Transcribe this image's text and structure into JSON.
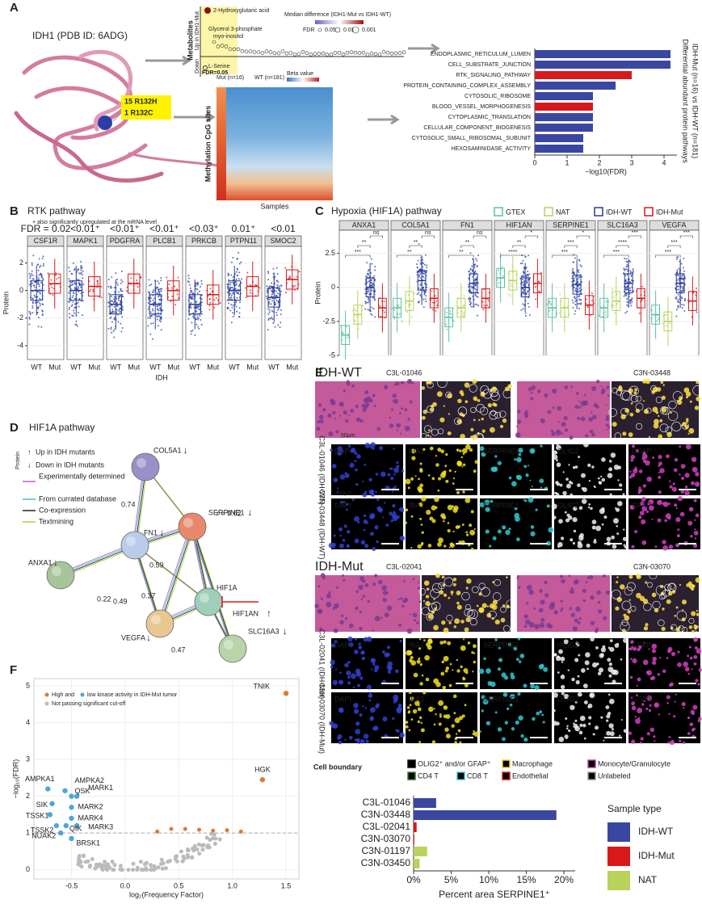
{
  "panel_a": {
    "label": "A",
    "protein_title": "IDH1 (PDB ID: 6ADG)",
    "mutations": [
      "15 R132H",
      "1 R132C"
    ],
    "metabolites": {
      "axis": "Metabolites",
      "up": "Up in IDH1-Mut",
      "down": "Down",
      "fdr": "FDR=0.05",
      "labels": [
        "2-Hydroxyglutaric acid",
        "Glycerol 3-phosphate",
        "myo-inositol",
        "L-Serine"
      ],
      "legend_title": "Median difference (IDH1-Mut vs IDH1-WT)",
      "fdr_legend": [
        "FDR",
        "0.05",
        "0.01",
        "0.001"
      ]
    },
    "methylation": {
      "axis": "Methylation CpG sites",
      "samples": "Samples",
      "mut": "Mut (n=16)",
      "wt": "WT (n=181)",
      "legend": "Beta value"
    },
    "pathways": {
      "categories": [
        "ENDOPLASMIC_RETICULUM_LUMEN",
        "CELL_SUBSTRATE_JUNCTION",
        "RTK_SIGNALING_PATHWAY",
        "PROTEIN_CONTAINING_COMPLEX_ASSEMBLY",
        "CYTOSOLIC_RIBOSOME",
        "BLOOD_VESSEL_MORPHOGENESIS",
        "CYTOPLASMIC_TRANSLATION",
        "CELLULAR_COMPONENT_BIOGENESIS",
        "CYTOSOLIC_SMALL_RIBOSOMAL_SUBUNIT",
        "HEXOSAMINIDASE_ACTIVITY"
      ],
      "values": [
        4.2,
        4.2,
        3.0,
        2.5,
        1.8,
        1.8,
        1.8,
        1.8,
        1.5,
        1.5
      ],
      "colors": [
        "#3a47a0",
        "#3a47a0",
        "#d7191c",
        "#3a47a0",
        "#3a47a0",
        "#d7191c",
        "#3a47a0",
        "#3a47a0",
        "#3a47a0",
        "#3a47a0"
      ],
      "xlim": [
        0,
        4.4
      ],
      "xticks": [
        0,
        1,
        2,
        3,
        4
      ],
      "xlabel": "−log10(FDR)",
      "side_label": [
        "Differential abundant protein pathways",
        "IDH-Mut (n=16) vs IDH-WT (n=181)"
      ]
    }
  },
  "panel_b": {
    "label": "B",
    "title": "RTK pathway",
    "subtitle": "+ also significantly upregulated at the mRNA level",
    "facets": [
      "CSF1R",
      "MAPK1",
      "PDGFRA",
      "PLCB1",
      "PRKCB",
      "PTPN11",
      "SMOC2"
    ],
    "fdr_labels": [
      "FDR = 0.02",
      "<0.01⁺",
      "<0.01⁺",
      "<0.01⁺",
      "<0.03⁺",
      "0.01⁺",
      "<0.01"
    ],
    "medians": [
      [
        0,
        0.5
      ],
      [
        0,
        0.3
      ],
      [
        -1,
        0.5
      ],
      [
        -1,
        0
      ],
      [
        -1,
        -0.3
      ],
      [
        0,
        0.3
      ],
      [
        -0.5,
        0.8
      ]
    ],
    "groups": [
      "WT",
      "Mut"
    ],
    "group_colors": [
      "#2a3d9e",
      "#d7191c"
    ],
    "ylim": [
      -5,
      3.2
    ],
    "yticks": [
      -4,
      -2,
      0,
      2
    ],
    "ylabel": "Protein",
    "xlabel": "IDH"
  },
  "panel_c": {
    "label": "C",
    "title": "Hypoxia (HIF1A) pathway",
    "groups": [
      "GTEX",
      "NAT",
      "IDH-WT",
      "IDH-Mut"
    ],
    "group_colors": [
      "#5cc2a0",
      "#b8d25a",
      "#2a3d9e",
      "#d7191c"
    ],
    "facets": [
      "ANXA1",
      "COL5A1",
      "FN1",
      "HIF1AN",
      "SERPINE1",
      "SLC16A3",
      "VEGFA"
    ],
    "significance": [
      [
        "ns",
        "**",
        "***"
      ],
      [
        "ns",
        "**",
        "**"
      ],
      [
        "ns",
        "**",
        "**"
      ],
      [
        "*",
        "**",
        "****"
      ],
      [
        "*",
        "***",
        "***"
      ],
      [
        "***",
        "****",
        "***"
      ],
      [
        "***",
        "***",
        "***"
      ]
    ],
    "medians": [
      [
        -3.5,
        -2,
        0,
        -1.5
      ],
      [
        -1.5,
        -1,
        0.5,
        -0.8
      ],
      [
        -2.2,
        -1.5,
        0.3,
        -0.8
      ],
      [
        0.7,
        0.5,
        0,
        0.3
      ],
      [
        -1.5,
        -1.5,
        0.2,
        -1.3
      ],
      [
        -1.5,
        -1,
        0.3,
        -0.8
      ],
      [
        -2,
        -2.5,
        0.3,
        -1
      ]
    ],
    "ylim": [
      -5,
      4.2
    ],
    "yticks": [
      -5,
      -2.5,
      0,
      2.5
    ],
    "ylabel": "Protein"
  },
  "panel_d": {
    "label": "D",
    "title": "HIF1A pathway",
    "legend": {
      "title": "Protein",
      "up": "Up in IDH mutants",
      "down": "Down in IDH mutants",
      "edges": [
        "Experimentally determined",
        "From currated database",
        "Co-expression",
        "Textmining"
      ]
    },
    "nodes": [
      "COL5A1",
      "SERPINE1",
      "FN1",
      "ANXA1",
      "HIF1A",
      "VEGFA",
      "SLC16A3"
    ],
    "inhibitor": "HIF1AN",
    "edge_labels": [
      "r = 0.62",
      "0.74",
      "0.59",
      "0.22",
      "0.49",
      "0.37",
      "0.47"
    ]
  },
  "panel_e": {
    "label": "E",
    "wt": {
      "title": "IDH-WT",
      "samples": [
        "C3L-01046",
        "C3N-03448"
      ],
      "rows": [
        "C3L-01046 (IDH-WT)",
        "C3N-03448 (IDH-WT)"
      ]
    },
    "mut": {
      "title": "IDH-Mut",
      "samples": [
        "C3L-02041",
        "C3N-03070"
      ],
      "rows": [
        "C3L-02041 (IDH-Mut)",
        "C3N-03070 (IDH-Mut)"
      ]
    },
    "channels": [
      "DAPI",
      "IBA1",
      "SERPINE1",
      "OLIG2",
      "GFAP"
    ],
    "scale": "50µm",
    "boundary": {
      "title": "Cell boundary",
      "items": [
        "OLIG2⁺ and/or GFAP⁺",
        "Macrophage",
        "Monocyte/Granulocyte",
        "CD4 T",
        "CD8 T",
        "Endothelial",
        "Unlabeled"
      ]
    },
    "bars": {
      "categories": [
        "C3L-01046",
        "C3N-03448",
        "C3L-02041",
        "C3N-03070",
        "C3N-01197",
        "C3N-03450"
      ],
      "values": [
        3,
        19,
        0.4,
        0.1,
        1.8,
        0.8
      ],
      "sample_type": [
        0,
        0,
        1,
        1,
        2,
        2
      ],
      "legend_title": "Sample type",
      "legend": [
        "IDH-WT",
        "IDH-Mut",
        "NAT"
      ],
      "colors": [
        "#3a47a0",
        "#d7191c",
        "#b8d25a"
      ],
      "xlim": [
        0,
        21.5
      ],
      "xticks": [
        {
          "value": 0,
          "label": "0%"
        },
        {
          "value": 5,
          "label": "5%"
        },
        {
          "value": 10,
          "label": "10%"
        },
        {
          "value": 15,
          "label": "15%"
        },
        {
          "value": 20,
          "label": "20%"
        }
      ],
      "xlabel": "Percent area SERPINE1⁺"
    }
  },
  "panel_f": {
    "label": "F",
    "legend": [
      "High and",
      "low kinase activity in IDH-Mut tumor",
      "Not passing significant cut-off"
    ],
    "points": {
      "names": [
        "TNIK",
        "HGK",
        "AMPKA1",
        "AMPKA2",
        "QSK",
        "MARK1",
        "SIK",
        "TSSK1",
        "MARK2",
        "MARK4",
        "TSSK2",
        "QIK",
        "MARK3",
        "NUAK2",
        "BRSK1"
      ],
      "x": [
        1.5,
        1.28,
        -0.72,
        -0.56,
        -0.5,
        -0.45,
        -0.68,
        -0.7,
        -0.5,
        -0.5,
        -0.64,
        -0.55,
        -0.45,
        -0.6,
        -0.5
      ],
      "y": [
        4.8,
        2.45,
        2.2,
        2.15,
        2.0,
        2.0,
        1.8,
        1.5,
        1.7,
        1.4,
        1.2,
        1.2,
        1.2,
        1.0,
        0.85
      ]
    },
    "xlim": [
      -0.85,
      1.62
    ],
    "ylim": [
      -0.25,
      5.2
    ],
    "xticks": [
      -0.5,
      {
        "value": 0,
        "label": "0.0"
      },
      0.5,
      {
        "value": 1,
        "label": "1.0"
      },
      1.5
    ],
    "yticks": [
      0,
      1,
      2,
      3,
      4,
      5
    ],
    "xlabel": "log₂(Frequency Factor)",
    "ylabel": "−log₁₀(FDR)"
  }
}
